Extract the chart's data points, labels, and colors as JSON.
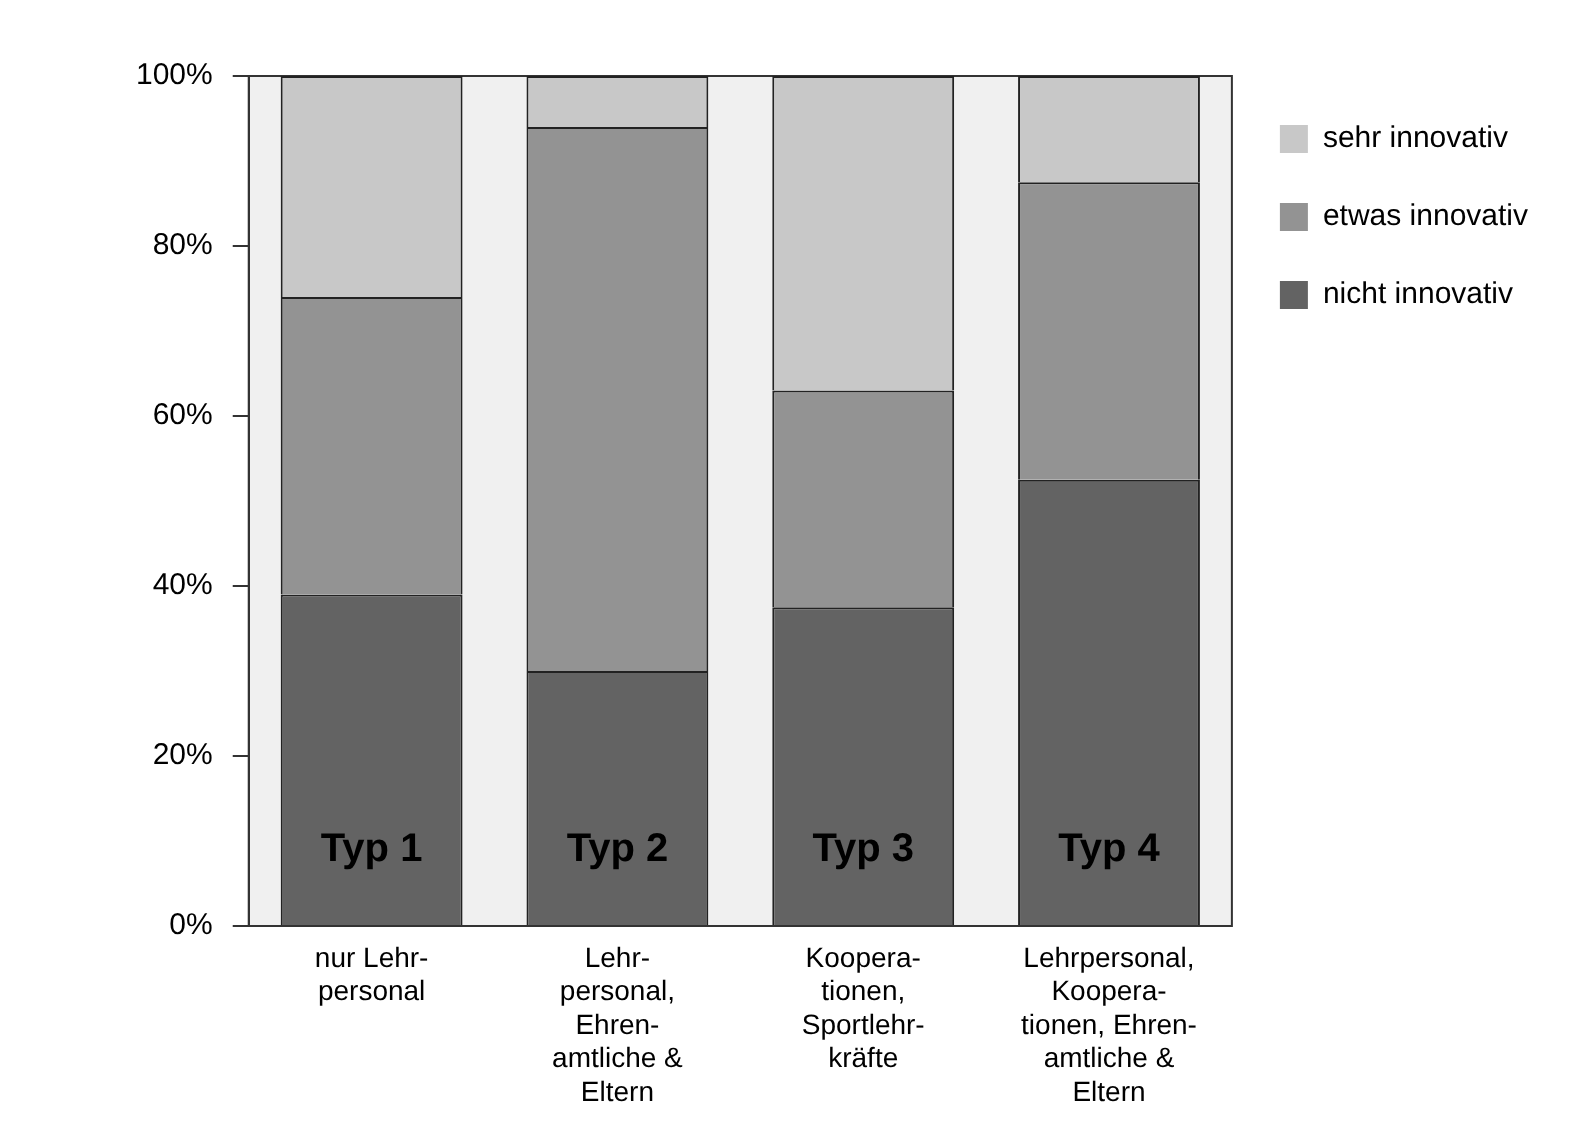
{
  "chart_data": {
    "type": "bar",
    "stacked": true,
    "categories": [
      "nur Lehr-\npersonal",
      "Lehr-\npersonal,\nEhren-\namtliche &\nEltern",
      "Koopera-\ntionen,\nSportlehr-\nkräfte",
      "Lehrpersonal,\nKoopera-\ntionen, Ehren-\namtliche &\nEltern"
    ],
    "series": [
      {
        "name": "nicht innovativ",
        "color": "#636363",
        "values": [
          39,
          30,
          37.5,
          52.5
        ]
      },
      {
        "name": "etwas innovativ",
        "color": "#939393",
        "values": [
          35,
          64,
          25.5,
          35
        ]
      },
      {
        "name": "sehr innovativ",
        "color": "#c8c8c8",
        "values": [
          26,
          6,
          37,
          12.5
        ]
      }
    ],
    "ylim": [
      0,
      100
    ],
    "yticks": [
      {
        "value": 0,
        "label": "0%"
      },
      {
        "value": 20,
        "label": "20%"
      },
      {
        "value": 40,
        "label": "40%"
      },
      {
        "value": 60,
        "label": "60%"
      },
      {
        "value": 80,
        "label": "80%"
      },
      {
        "value": 100,
        "label": "100%"
      }
    ],
    "annotations": [
      "Typ 1",
      "Typ 2",
      "Typ 3",
      "Typ 4"
    ],
    "grid": false,
    "legend": "top right"
  }
}
